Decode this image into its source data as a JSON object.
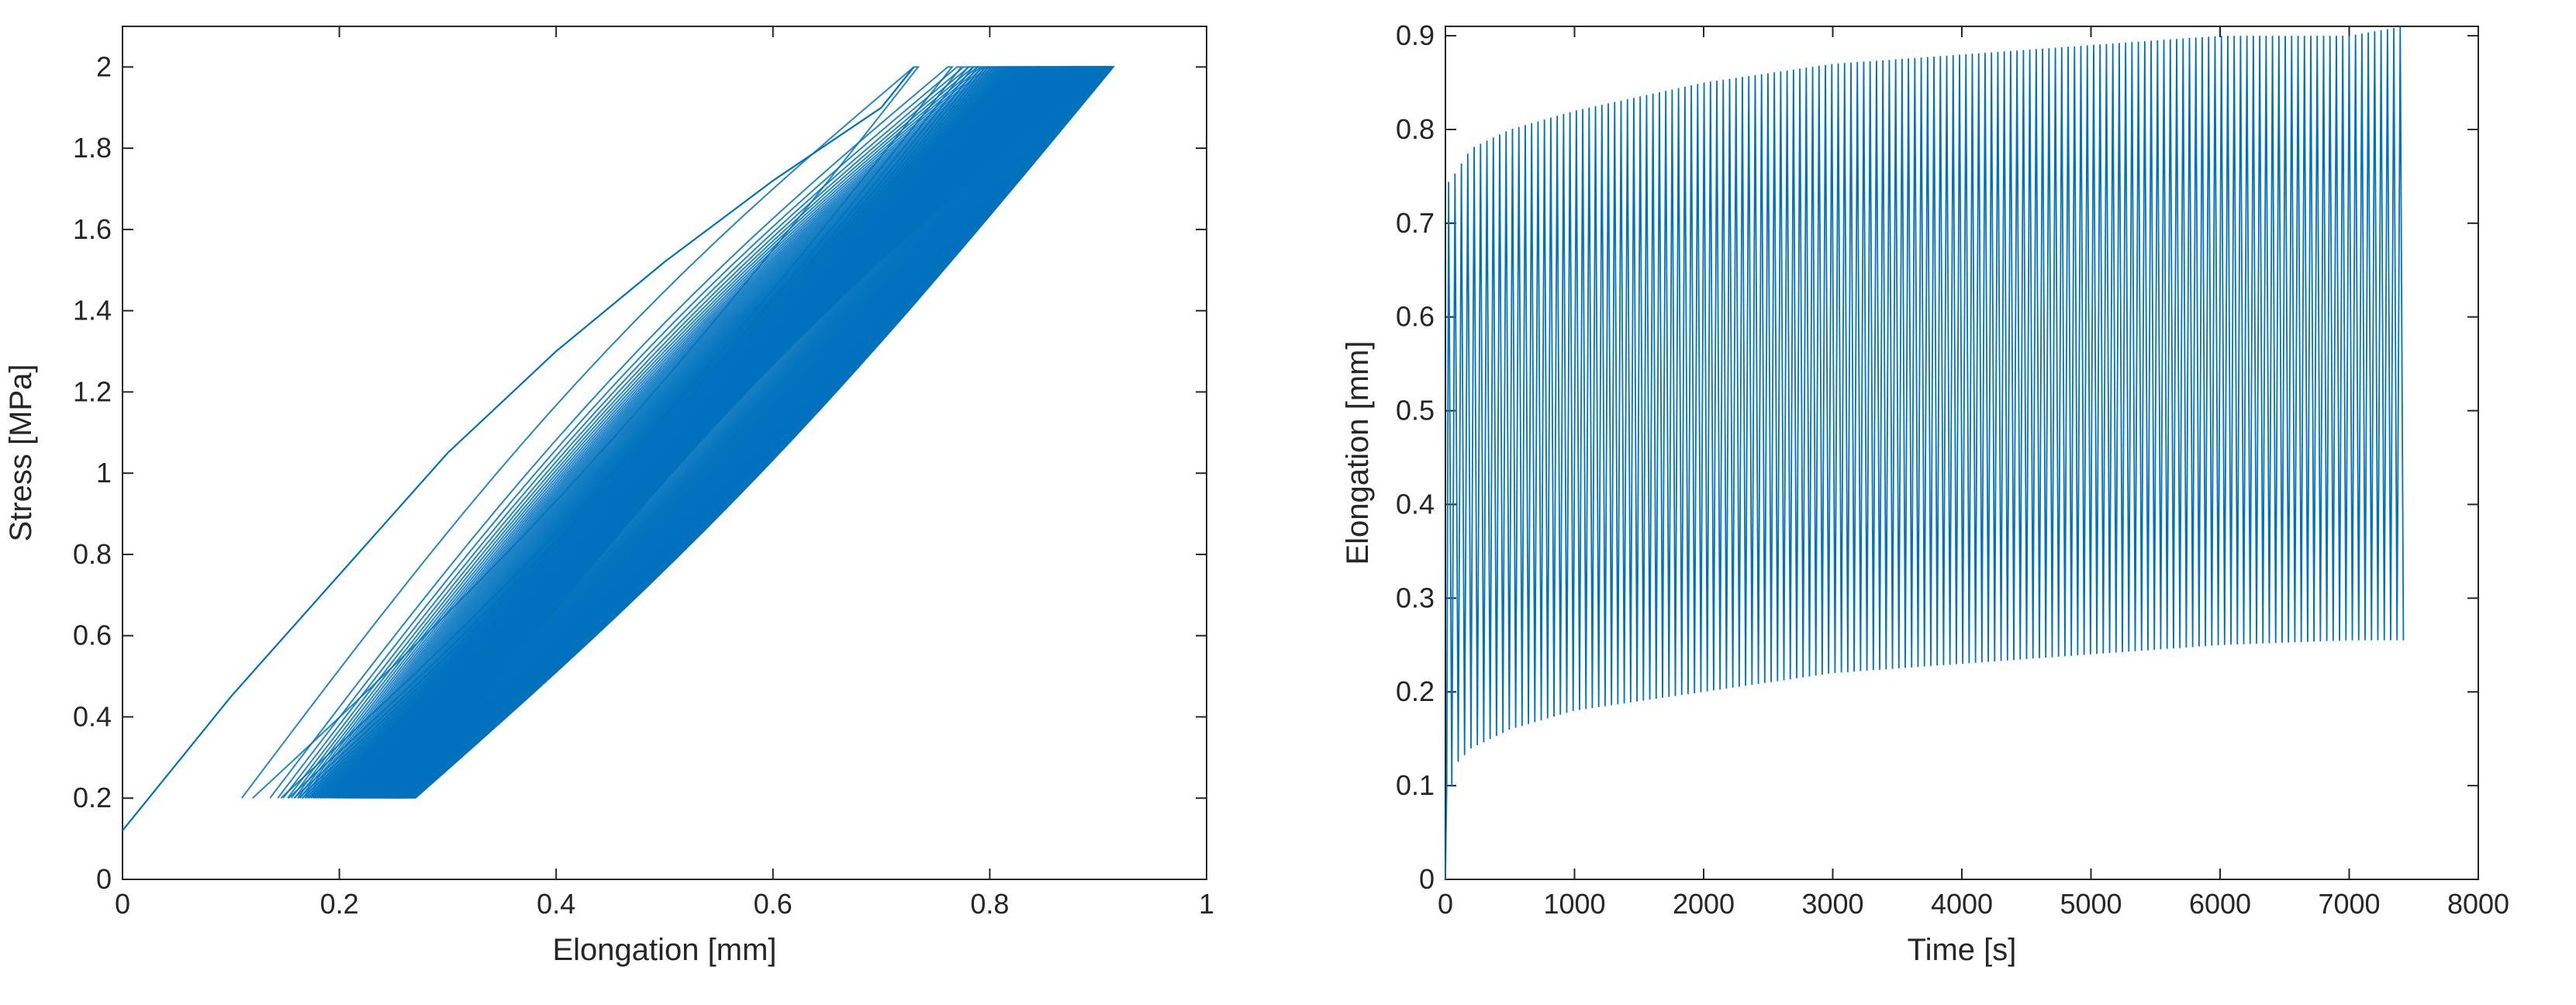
{
  "chart_data": [
    {
      "type": "line",
      "xlabel": "Elongation [mm]",
      "ylabel": "Stress [MPa]",
      "xlim": [
        0,
        1
      ],
      "ylim": [
        0,
        2.1
      ],
      "xticks": [
        "0",
        "0.2",
        "0.4",
        "0.6",
        "0.8",
        "1"
      ],
      "yticks": [
        "0",
        "0.2",
        "0.4",
        "0.6",
        "0.8",
        "1",
        "1.2",
        "1.4",
        "1.6",
        "1.8",
        "2"
      ],
      "grid": false,
      "color": "#0072BD",
      "description_points": {
        "first_loading": {
          "x": [
            0.0,
            0.1,
            0.2,
            0.3,
            0.4,
            0.5,
            0.6,
            0.7,
            0.73
          ],
          "y": [
            0.12,
            0.45,
            0.75,
            1.05,
            1.3,
            1.52,
            1.72,
            1.9,
            2.0
          ]
        },
        "stress_min": 0.2,
        "stress_max": 2.0,
        "min_elongation_range": [
          0.11,
          0.26
        ],
        "max_elongation_range": [
          0.73,
          0.91
        ]
      }
    },
    {
      "type": "line",
      "xlabel": "Time [s]",
      "ylabel": "Elongation [mm]",
      "xlim": [
        0,
        8000
      ],
      "ylim": [
        0,
        0.91
      ],
      "xticks": [
        "0",
        "1000",
        "2000",
        "3000",
        "4000",
        "5000",
        "6000",
        "7000",
        "8000"
      ],
      "yticks": [
        "0",
        "0.1",
        "0.2",
        "0.3",
        "0.4",
        "0.5",
        "0.6",
        "0.7",
        "0.8",
        "0.9"
      ],
      "grid": false,
      "color": "#0072BD",
      "cycles": 150,
      "t_end": 7420,
      "envelope_max": {
        "x": [
          0,
          60,
          200,
          500,
          1000,
          2000,
          3000,
          4000,
          5000,
          6000,
          7000,
          7420
        ],
        "y": [
          0.74,
          0.75,
          0.78,
          0.8,
          0.82,
          0.85,
          0.87,
          0.88,
          0.89,
          0.9,
          0.9,
          0.91
        ]
      },
      "envelope_min": {
        "x": [
          0,
          60,
          200,
          500,
          1000,
          2000,
          3000,
          4000,
          5000,
          6000,
          7000,
          7420
        ],
        "y": [
          0.0,
          0.12,
          0.14,
          0.16,
          0.18,
          0.2,
          0.22,
          0.23,
          0.24,
          0.25,
          0.255,
          0.255
        ]
      }
    }
  ]
}
